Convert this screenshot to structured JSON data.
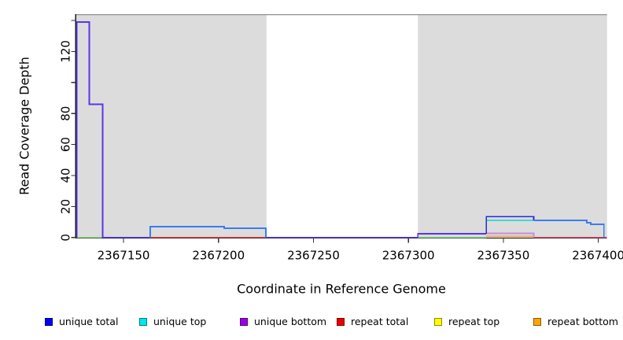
{
  "chart_data": {
    "type": "line",
    "subtype": "step-coverage-plot",
    "title": "",
    "xlabel": "Coordinate in Reference Genome",
    "ylabel": "Read Coverage Depth",
    "xlim": [
      2367125,
      2367404.6
    ],
    "ylim": [
      0,
      145
    ],
    "grid": false,
    "legend_position": "bottom",
    "x_axis": {
      "tick_values": [
        2367150,
        2367200,
        2367250,
        2367300,
        2367350,
        2367400
      ],
      "tick_labels": [
        "2367150",
        "2367200",
        "2367250",
        "2367300",
        "2367350",
        "2367400"
      ]
    },
    "y_axis": {
      "tick_values": [
        0,
        20,
        40,
        60,
        80,
        100,
        120,
        140
      ],
      "labeled_ticks": [
        0,
        20,
        40,
        60,
        80,
        120
      ],
      "tick_labels": [
        "0",
        "20",
        "40",
        "60",
        "80",
        "120"
      ]
    },
    "shaded_regions": [
      {
        "name": "left-gray-region",
        "x1": 2367125,
        "x2": 2367225.3,
        "color": "#dcdcdc"
      },
      {
        "name": "right-gray-region",
        "x1": 2367305,
        "x2": 2367404.6,
        "color": "#dcdcdc"
      }
    ],
    "legend": [
      {
        "label": "unique total",
        "color": "#0000ee"
      },
      {
        "label": "unique top",
        "color": "#00e5ee"
      },
      {
        "label": "unique bottom",
        "color": "#9a00e6"
      },
      {
        "label": "repeat total",
        "color": "#e60000"
      },
      {
        "label": "repeat top",
        "color": "#ffff00"
      },
      {
        "label": "repeat bottom",
        "color": "#ffa500"
      }
    ],
    "series": [
      {
        "name": "unique total",
        "format": "step [x_start, depth]",
        "points": [
          [
            2367125,
            139
          ],
          [
            2367132,
            86
          ],
          [
            2367139,
            0
          ],
          [
            2367164,
            7
          ],
          [
            2367203,
            6
          ],
          [
            2367225,
            0
          ],
          [
            2367305,
            2.5
          ],
          [
            2367341,
            13.5
          ],
          [
            2367366,
            11
          ],
          [
            2367394,
            9.5
          ],
          [
            2367396,
            8.5
          ],
          [
            2367403,
            0
          ]
        ]
      },
      {
        "name": "unique top",
        "format": "step [x_start, depth]",
        "points": [
          [
            2367125,
            0
          ],
          [
            2367341,
            11
          ],
          [
            2367366,
            0
          ]
        ]
      },
      {
        "name": "unique bottom",
        "format": "step [x_start, depth]",
        "points": [
          [
            2367125,
            139
          ],
          [
            2367132,
            86
          ],
          [
            2367139,
            0
          ],
          [
            2367305,
            2.5
          ],
          [
            2367341,
            3
          ],
          [
            2367366,
            0
          ]
        ]
      },
      {
        "name": "repeat total",
        "format": "step [x_start, depth]",
        "points": [
          [
            2367125,
            0
          ]
        ]
      },
      {
        "name": "repeat top",
        "format": "step [x_start, depth]",
        "points": [
          [
            2367125,
            0
          ]
        ]
      },
      {
        "name": "repeat bottom",
        "format": "step [x_start, depth]",
        "points": [
          [
            2367125,
            0
          ],
          [
            2367341,
            0.8
          ],
          [
            2367366,
            0
          ]
        ]
      }
    ],
    "render_segments": [
      {
        "name": "green-zero-left",
        "color": "#85d685",
        "points": [
          [
            2367125.4,
            0
          ],
          [
            2367139,
            0
          ]
        ]
      },
      {
        "name": "green-zero-right",
        "color": "#85d685",
        "points": [
          [
            2367305,
            0
          ],
          [
            2367341,
            0
          ]
        ]
      },
      {
        "name": "violet-spike",
        "color": "#5a35e8",
        "points": [
          [
            2367125.4,
            0
          ],
          [
            2367125.4,
            139
          ],
          [
            2367132,
            139
          ],
          [
            2367132,
            86
          ],
          [
            2367139,
            86
          ],
          [
            2367139,
            0
          ],
          [
            2367164,
            0
          ]
        ]
      },
      {
        "name": "red-zero-left",
        "color": "#d24040",
        "points": [
          [
            2367164,
            0
          ],
          [
            2367225,
            0
          ]
        ]
      },
      {
        "name": "lightblue-plateau",
        "color": "#3b7cf0",
        "points": [
          [
            2367164,
            0
          ],
          [
            2367164,
            7
          ],
          [
            2367203,
            7
          ],
          [
            2367203,
            6
          ],
          [
            2367225,
            6
          ],
          [
            2367225,
            0
          ]
        ]
      },
      {
        "name": "violet-zero-gap",
        "color": "#5a35e8",
        "points": [
          [
            2367225,
            0
          ],
          [
            2367305,
            0
          ]
        ]
      },
      {
        "name": "violet-low-step",
        "color": "#5a35e8",
        "points": [
          [
            2367305,
            0
          ],
          [
            2367305,
            2.5
          ],
          [
            2367341,
            2.5
          ]
        ]
      },
      {
        "name": "orange-low",
        "color": "#ffa030",
        "points": [
          [
            2367341,
            0.8
          ],
          [
            2367366,
            0.8
          ]
        ]
      },
      {
        "name": "lavender-low",
        "color": "#c28be8",
        "points": [
          [
            2367341,
            2.7
          ],
          [
            2367366,
            2.7
          ],
          [
            2367366,
            0.4
          ]
        ]
      },
      {
        "name": "crimson-zero-right",
        "color": "#d24468",
        "points": [
          [
            2367366,
            0
          ],
          [
            2367404.6,
            0
          ]
        ]
      },
      {
        "name": "cyan-step",
        "color": "#45d6d6",
        "points": [
          [
            2367341,
            11
          ],
          [
            2367366,
            11
          ]
        ]
      },
      {
        "name": "darkblue-step",
        "color": "#2b2bd5",
        "points": [
          [
            2367341,
            2.5
          ],
          [
            2367341,
            13.5
          ],
          [
            2367366,
            13.5
          ],
          [
            2367366,
            11
          ]
        ]
      },
      {
        "name": "lightblue-right",
        "color": "#3b7cf0",
        "points": [
          [
            2367366,
            11
          ],
          [
            2367394,
            11
          ],
          [
            2367394,
            9.5
          ],
          [
            2367396,
            9.5
          ],
          [
            2367396,
            8.5
          ],
          [
            2367403,
            8.5
          ],
          [
            2367403,
            0
          ]
        ]
      }
    ],
    "colors": {
      "panel_shade": "#dcdcdc",
      "top_border": "#8f8f8f",
      "axis": "#1a1a1a",
      "tick": "#333333",
      "text": "#000000"
    }
  }
}
